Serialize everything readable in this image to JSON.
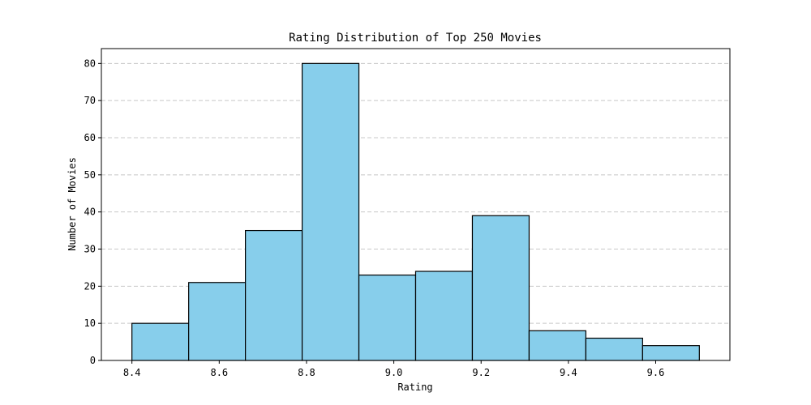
{
  "chart_data": {
    "type": "bar",
    "title": "Rating Distribution of Top 250 Movies",
    "xlabel": "Rating",
    "ylabel": "Number of Movies",
    "bin_edges": [
      8.4,
      8.53,
      8.66,
      8.79,
      8.92,
      9.05,
      9.18,
      9.31,
      9.44,
      9.57,
      9.7
    ],
    "values": [
      10,
      21,
      35,
      80,
      23,
      24,
      39,
      8,
      6,
      4
    ],
    "xlim": [
      8.33,
      9.77
    ],
    "ylim": [
      0,
      84
    ],
    "x_ticks": [
      "8.4",
      "8.6",
      "8.8",
      "9.0",
      "9.2",
      "9.4",
      "9.6"
    ],
    "y_ticks": [
      "0",
      "10",
      "20",
      "30",
      "40",
      "50",
      "60",
      "70",
      "80"
    ],
    "grid": "y-dashed",
    "colors": {
      "bar_fill": "#87CEEB",
      "bar_edge": "#000000",
      "grid": "#c8c8c8"
    }
  }
}
